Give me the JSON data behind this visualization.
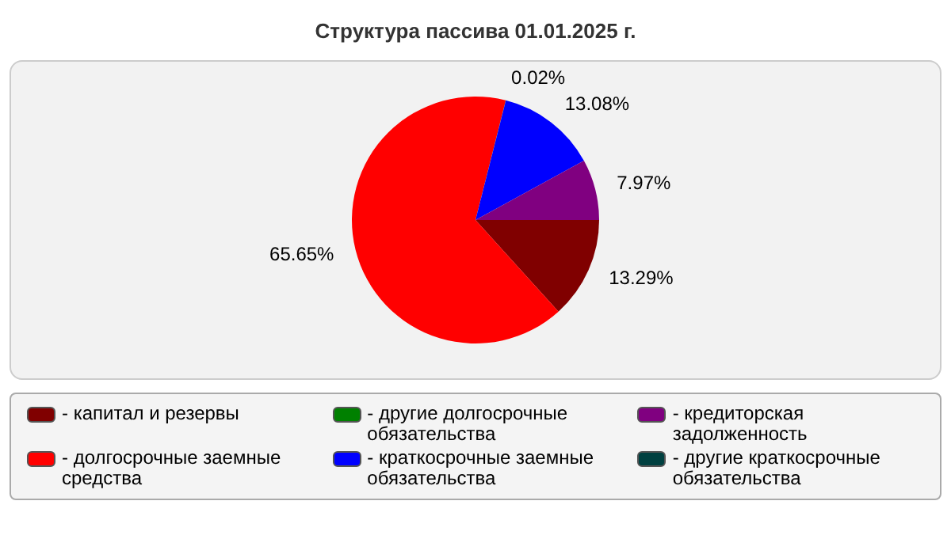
{
  "chart_data": {
    "type": "pie",
    "title": "Структура пассива 01.01.2025 г.",
    "categories": [
      "- капитал и резервы",
      "- долгосрочные заемные средства",
      "- другие долгосрочные обязательства",
      "- краткосрочные заемные обязательства",
      "- кредиторская задолженность",
      "- другие краткосрочные обязательства"
    ],
    "values": [
      13.29,
      65.65,
      0.02,
      13.08,
      7.97,
      0
    ],
    "value_labels": [
      "13.29%",
      "65.65%",
      "0.02%",
      "13.08%",
      "7.97%",
      null
    ],
    "colors": [
      "#800000",
      "#ff0000",
      "#008000",
      "#0000ff",
      "#800080",
      "#004040"
    ],
    "legend": "bottom"
  }
}
